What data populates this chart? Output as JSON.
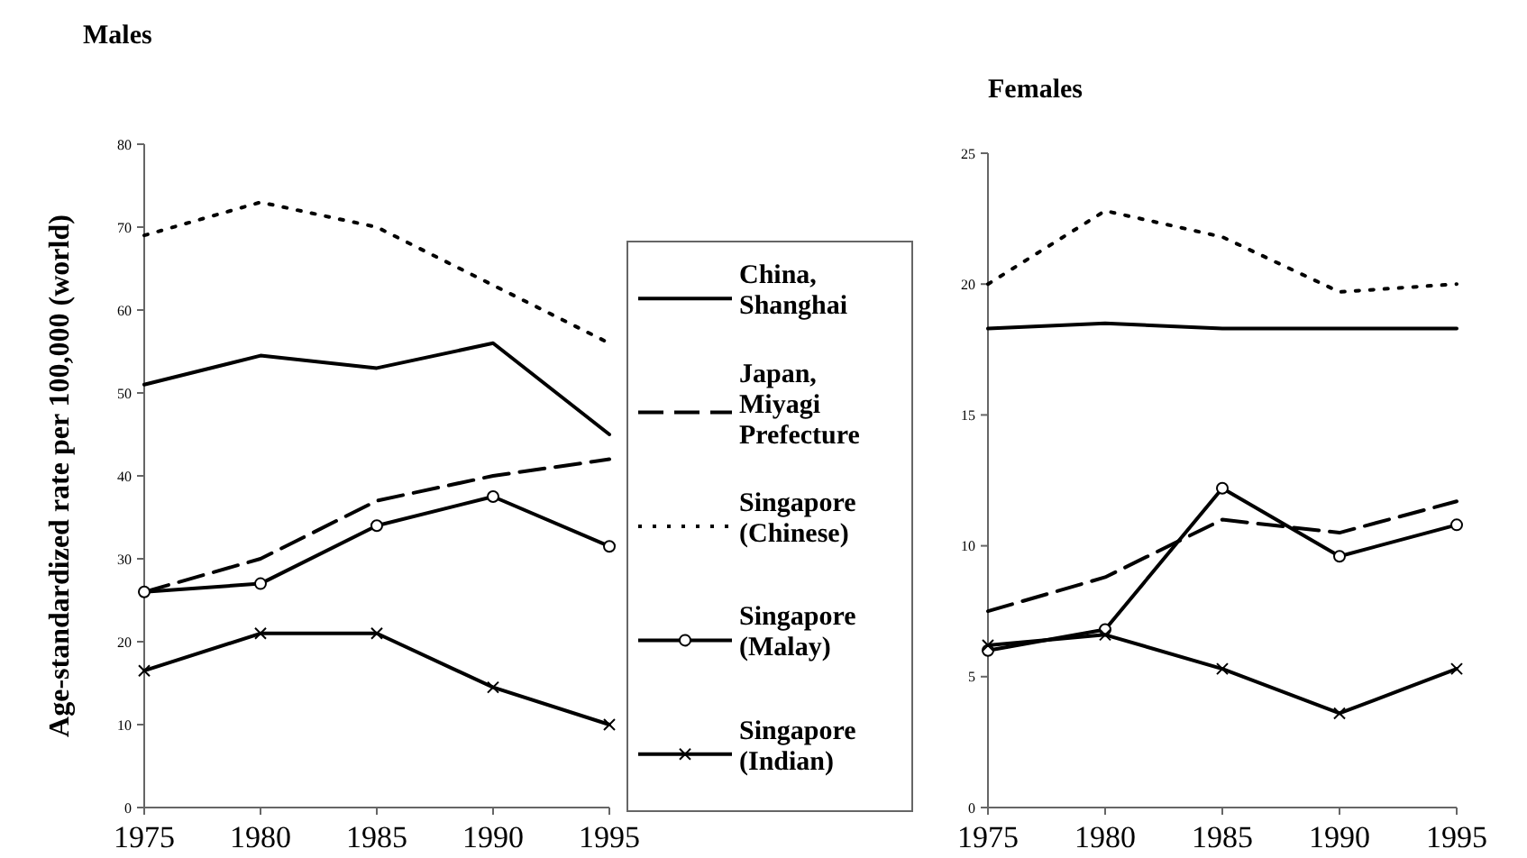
{
  "chart_data": [
    {
      "type": "line",
      "title": "Males",
      "ylabel": "Age-standardized rate per 100,000 (world)",
      "x": [
        1975,
        1980,
        1985,
        1990,
        1995
      ],
      "xlim": [
        1975,
        1995
      ],
      "xticks": [
        1975,
        1980,
        1985,
        1990,
        1995
      ],
      "ylim": [
        0,
        80
      ],
      "yticks": [
        0,
        10,
        20,
        30,
        40,
        50,
        60,
        70,
        80
      ],
      "legend": "right",
      "grid": false,
      "series": [
        {
          "name": "China, Shanghai",
          "color": "#000000",
          "line_style": "solid",
          "marker": "none",
          "values": [
            51,
            54.5,
            53,
            56,
            45
          ]
        },
        {
          "name": "Japan, Miyagi Prefecture",
          "color": "#000000",
          "line_style": "dashed",
          "marker": "none",
          "values": [
            26,
            30,
            37,
            40,
            42
          ]
        },
        {
          "name": "Singapore (Chinese)",
          "color": "#000000",
          "line_style": "dotted",
          "marker": "none",
          "values": [
            69,
            73,
            70,
            63,
            56
          ]
        },
        {
          "name": "Singapore (Malay)",
          "color": "#000000",
          "line_style": "solid",
          "marker": "circle",
          "values": [
            26,
            27,
            34,
            37.5,
            31.5
          ]
        },
        {
          "name": "Singapore (Indian)",
          "color": "#000000",
          "line_style": "solid",
          "marker": "cross",
          "values": [
            16.5,
            21,
            21,
            14.5,
            10
          ]
        }
      ]
    },
    {
      "type": "line",
      "title": "Females",
      "x": [
        1975,
        1980,
        1985,
        1990,
        1995
      ],
      "xlim": [
        1975,
        1995
      ],
      "xticks": [
        1975,
        1980,
        1985,
        1990,
        1995
      ],
      "ylim": [
        0,
        25
      ],
      "yticks": [
        0,
        5,
        10,
        15,
        20,
        25
      ],
      "grid": false,
      "series": [
        {
          "color": "#000000",
          "line_style": "solid",
          "marker": "none",
          "values": [
            18.3,
            18.5,
            18.3,
            18.3,
            18.3
          ]
        },
        {
          "color": "#000000",
          "line_style": "dashed",
          "marker": "none",
          "values": [
            7.5,
            8.8,
            11,
            10.5,
            11.7
          ]
        },
        {
          "color": "#000000",
          "line_style": "dotted",
          "marker": "none",
          "values": [
            20,
            22.8,
            21.8,
            19.7,
            20
          ]
        },
        {
          "color": "#000000",
          "line_style": "solid",
          "marker": "circle",
          "values": [
            6,
            6.8,
            12.2,
            9.6,
            10.8
          ]
        },
        {
          "color": "#000000",
          "line_style": "solid",
          "marker": "cross",
          "values": [
            6.2,
            6.6,
            5.3,
            3.6,
            5.3
          ]
        }
      ]
    }
  ]
}
